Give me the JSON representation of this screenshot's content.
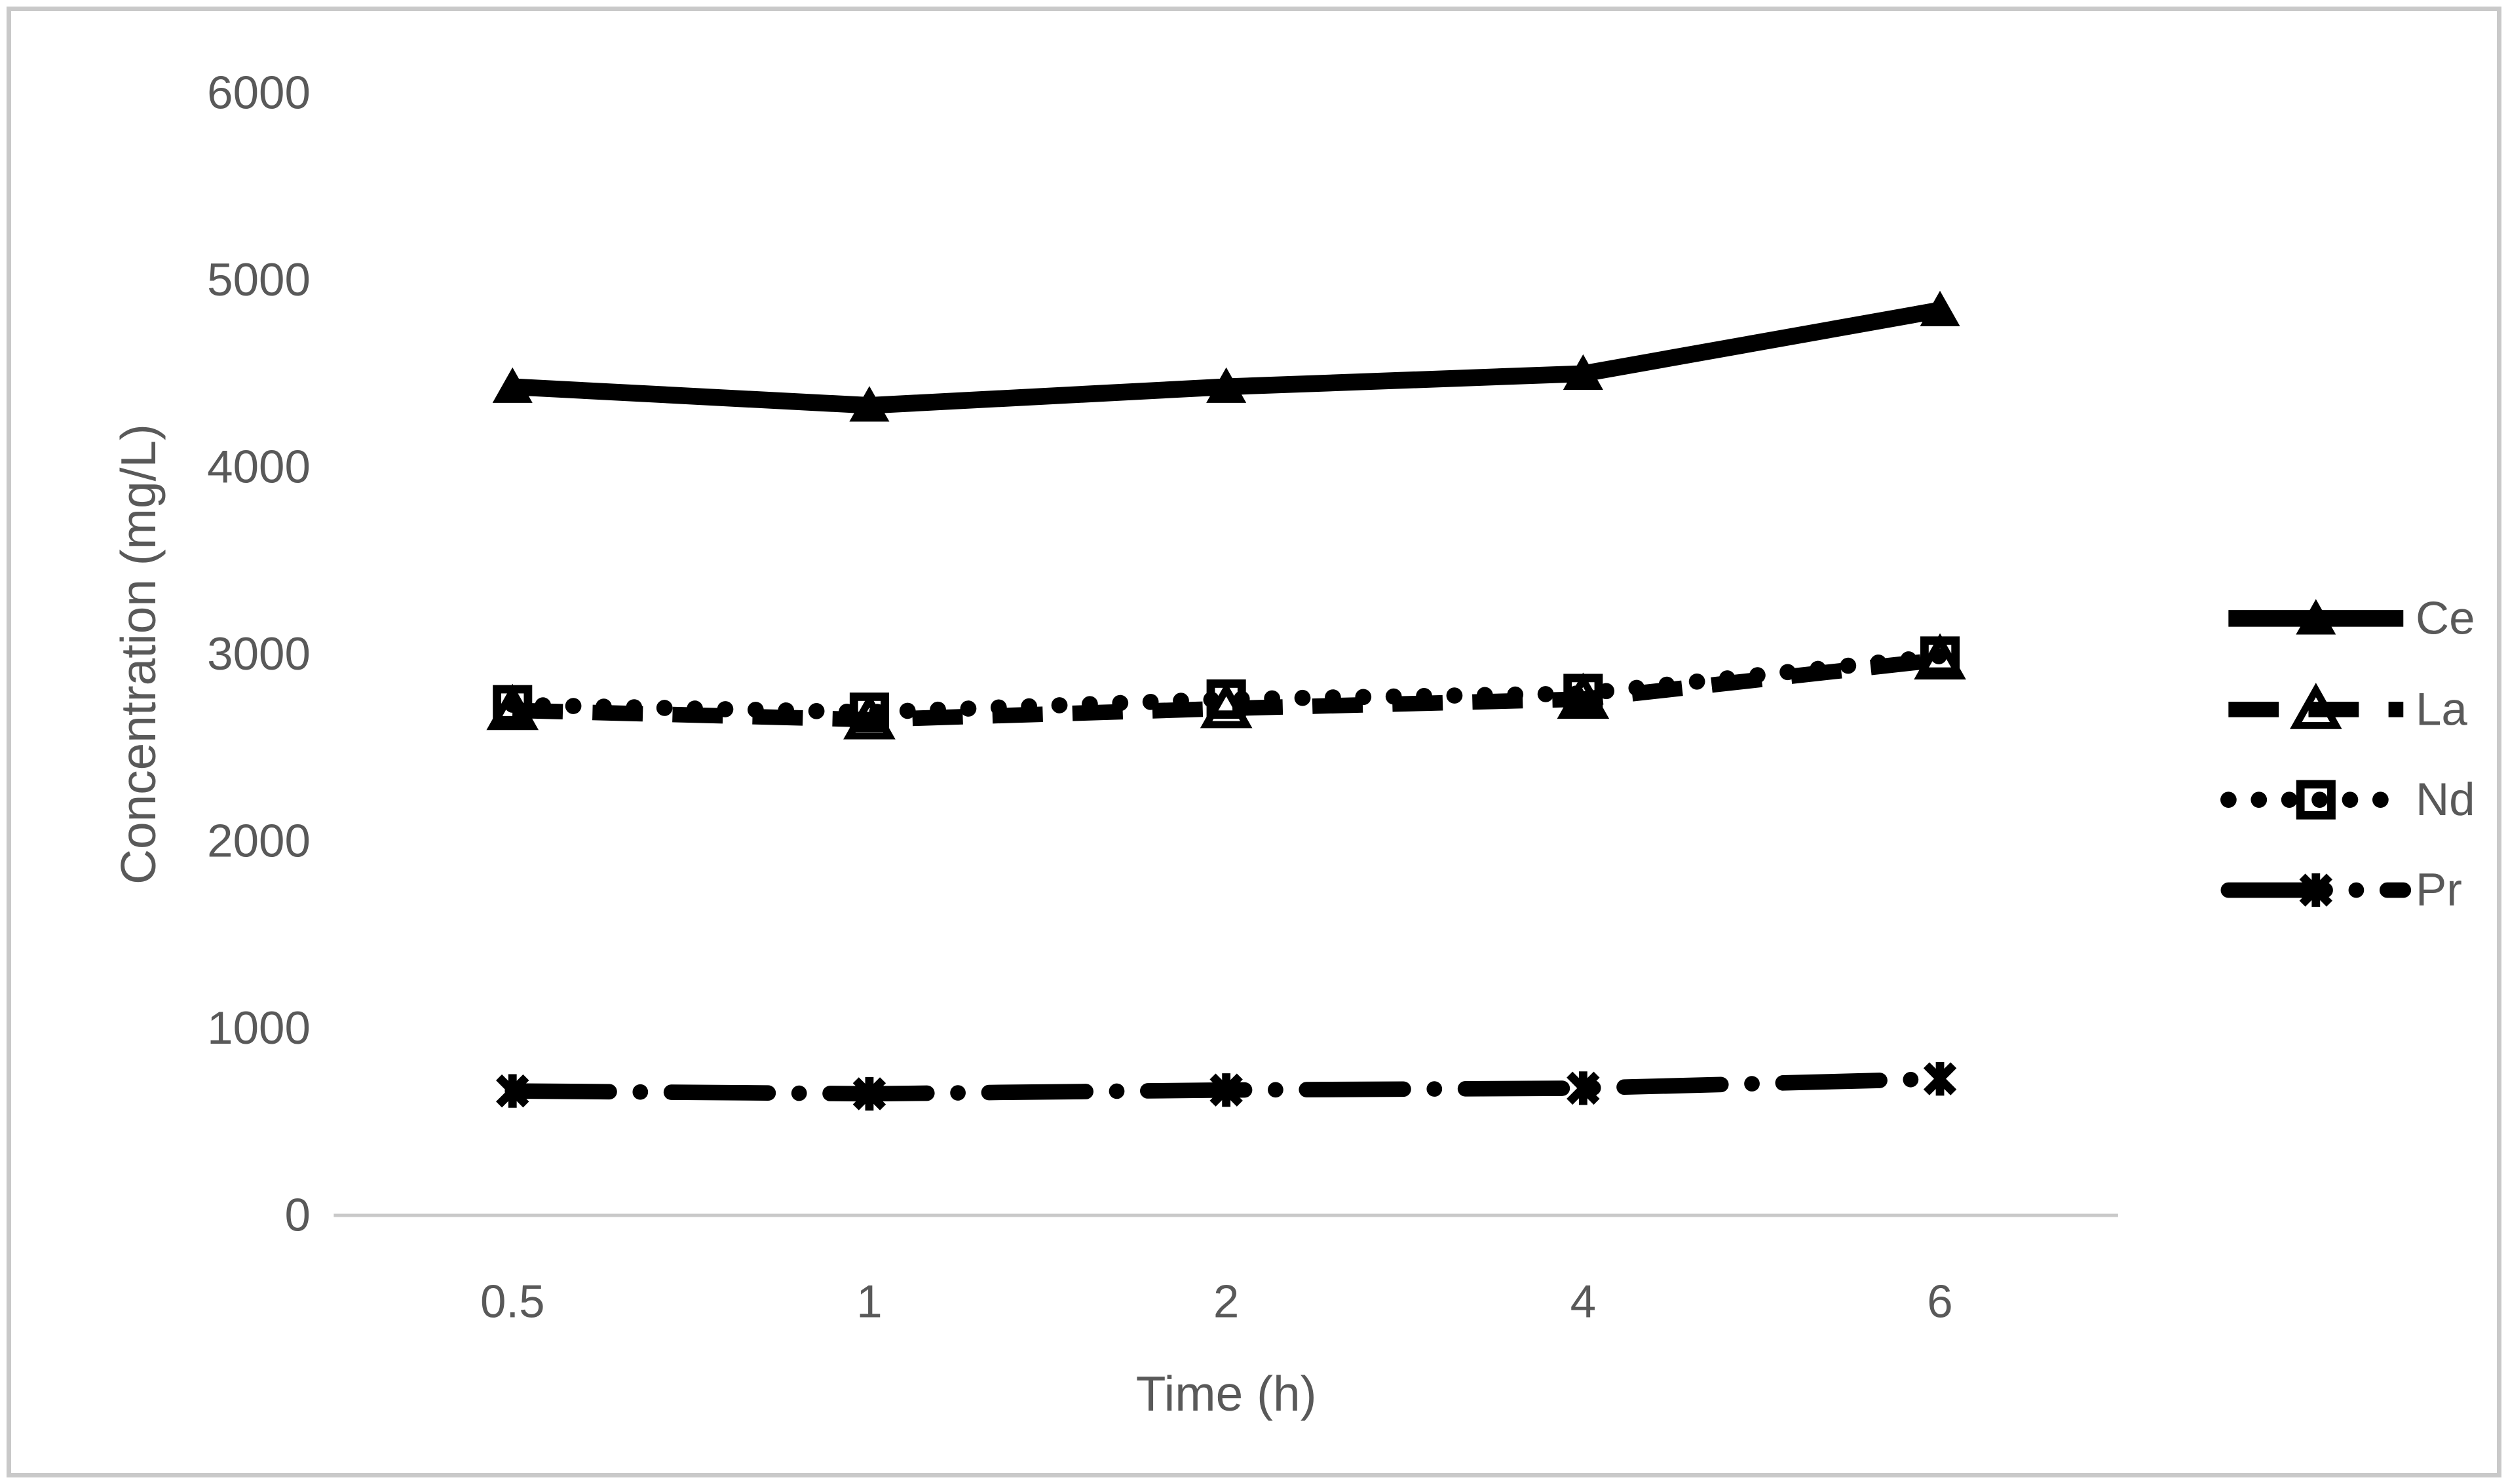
{
  "figure": {
    "background": "#FFFFFF",
    "border_color": "#C9C9C9"
  },
  "chart_data": {
    "type": "line",
    "title": "",
    "xlabel": "Time (h)",
    "ylabel": "Concentration (mg/L)",
    "categories": [
      "0.5",
      "1",
      "2",
      "4",
      "6"
    ],
    "y_ticks": [
      0,
      1000,
      2000,
      3000,
      4000,
      5000,
      6000
    ],
    "y_tick_labels": [
      "0",
      "1000",
      "2000",
      "3000",
      "4000",
      "5000",
      "6000"
    ],
    "ylim": [
      0,
      6000
    ],
    "grid": false,
    "legend_position": "right",
    "series_color": "#000000",
    "text_color": "#595959",
    "axis_line_color": "#C9C9C9",
    "series": [
      {
        "name": "Ce",
        "values": [
          4430,
          4330,
          4430,
          4500,
          4840
        ],
        "line_style": "solid",
        "marker": "triangle-filled"
      },
      {
        "name": "La",
        "values": [
          2700,
          2650,
          2710,
          2760,
          2970
        ],
        "line_style": "dashed",
        "marker": "triangle-open"
      },
      {
        "name": "Nd",
        "values": [
          2730,
          2690,
          2760,
          2790,
          2990
        ],
        "line_style": "dotted",
        "marker": "square-open"
      },
      {
        "name": "Pr",
        "values": [
          665,
          650,
          670,
          680,
          730
        ],
        "line_style": "dash-dot",
        "marker": "asterisk"
      }
    ]
  }
}
